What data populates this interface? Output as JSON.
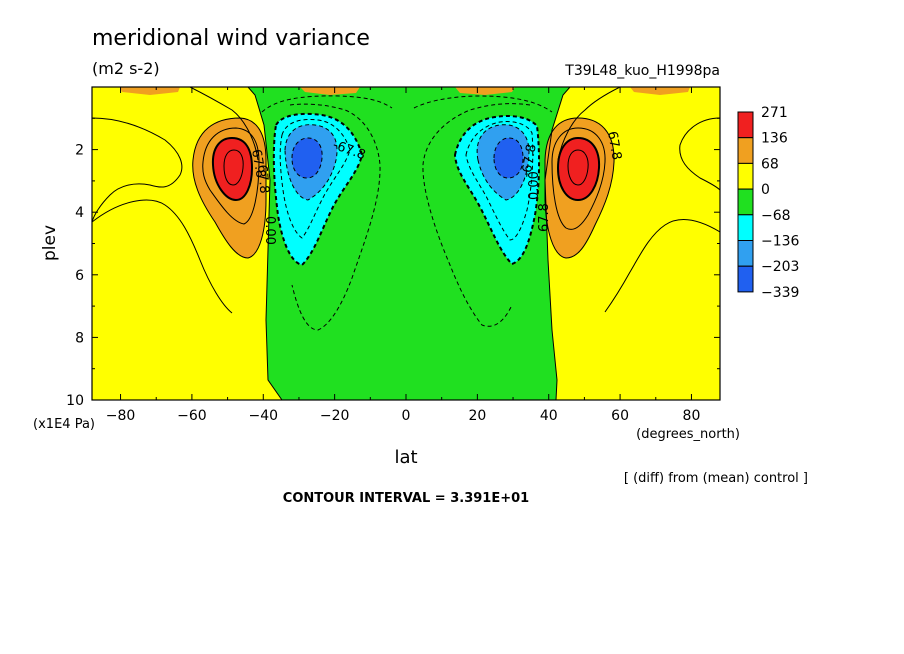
{
  "chart_data": {
    "type": "contour",
    "title": "meridional wind variance",
    "units": "(m2 s-2)",
    "run_label": "T39L48_kuo_H1998pa",
    "xlabel": "lat",
    "x_units": "(degrees_north)",
    "ylabel": "plev",
    "y_units": "(x1E4 Pa)",
    "diff_note": "[ (diff) from (mean) control ]",
    "contour_interval": "CONTOUR INTERVAL = 3.391E+01",
    "xlim": [
      -88,
      88
    ],
    "ylim": [
      10,
      0
    ],
    "x_ticks": [
      -80,
      -60,
      -40,
      -20,
      0,
      20,
      40,
      60,
      80
    ],
    "x_tick_labels": [
      "−80",
      "−60",
      "−40",
      "−20",
      "0",
      "20",
      "40",
      "60",
      "80"
    ],
    "y_ticks": [
      2,
      4,
      6,
      8,
      10
    ],
    "y_tick_labels": [
      "2",
      "4",
      "6",
      "8",
      "10"
    ],
    "legend": {
      "placement": "right",
      "levels": [
        {
          "label": "271",
          "color": "#f02020"
        },
        {
          "label": "136",
          "color": "#f0a020"
        },
        {
          "label": "68",
          "color": "#ffff00"
        },
        {
          "label": "0",
          "color": "#20e020"
        },
        {
          "label": "−68",
          "color": "#00ffff"
        },
        {
          "label": "−136",
          "color": "#30a0f0"
        },
        {
          "label": "−203",
          "color": "#2060f0"
        },
        {
          "label": "−339",
          "color": null
        }
      ]
    },
    "contour_labels": [
      "67.8",
      "0.00",
      "67.8",
      "0.00",
      "-67.8",
      "-67.8",
      "67.8",
      "67.8"
    ],
    "colors": {
      "background_fill": "#ffff00",
      "orange": "#f0a020",
      "red": "#f02020",
      "green": "#20e020",
      "cyan": "#00ffff",
      "blue": "#30a0f0",
      "dark_blue": "#2060f0"
    }
  }
}
